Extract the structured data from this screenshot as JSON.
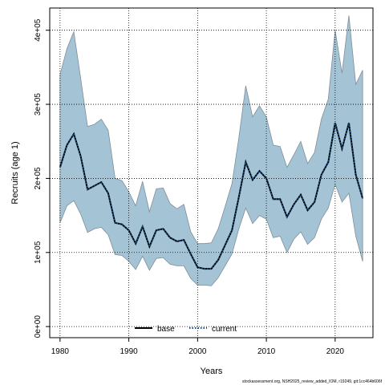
{
  "chart_data": {
    "type": "line",
    "xlabel": "Years",
    "ylabel": "Recruits (age 1)",
    "xlim": [
      1978.5,
      2025.5
    ],
    "ylim": [
      -15000,
      430000
    ],
    "x_ticks": [
      1980,
      1990,
      2000,
      2010,
      2020
    ],
    "x_tick_labels": [
      "1980",
      "1990",
      "2000",
      "2010",
      "2020"
    ],
    "y_ticks": [
      0,
      100000,
      200000,
      300000,
      400000
    ],
    "y_tick_labels": [
      "0e+00",
      "1e+05",
      "2e+05",
      "3e+05",
      "4e+05"
    ],
    "grid": true,
    "legend_position": "bottom-center",
    "x": [
      1980,
      1981,
      1982,
      1983,
      1984,
      1985,
      1986,
      1987,
      1988,
      1989,
      1990,
      1991,
      1992,
      1993,
      1994,
      1995,
      1996,
      1997,
      1998,
      1999,
      2000,
      2001,
      2002,
      2003,
      2004,
      2005,
      2006,
      2007,
      2008,
      2009,
      2010,
      2011,
      2012,
      2013,
      2014,
      2015,
      2016,
      2017,
      2018,
      2019,
      2020,
      2021,
      2022,
      2023,
      2024
    ],
    "series": [
      {
        "name": "base",
        "color": "#000000",
        "style": "solid",
        "values": [
          215000,
          245000,
          260000,
          230000,
          185000,
          190000,
          195000,
          180000,
          140000,
          138000,
          130000,
          112000,
          135000,
          108000,
          130000,
          132000,
          120000,
          115000,
          117000,
          98000,
          80000,
          78000,
          78000,
          90000,
          110000,
          130000,
          175000,
          222000,
          198000,
          210000,
          200000,
          172000,
          172000,
          148000,
          165000,
          178000,
          157000,
          168000,
          205000,
          222000,
          275000,
          240000,
          275000,
          205000,
          173000
        ]
      },
      {
        "name": "current",
        "color": "#1a4f8a",
        "style": "dotted",
        "values": [
          215000,
          245000,
          260000,
          230000,
          185000,
          190000,
          195000,
          180000,
          140000,
          138000,
          130000,
          112000,
          135000,
          108000,
          130000,
          132000,
          120000,
          115000,
          117000,
          98000,
          80000,
          78000,
          78000,
          90000,
          110000,
          130000,
          175000,
          222000,
          198000,
          210000,
          200000,
          172000,
          172000,
          148000,
          165000,
          178000,
          157000,
          168000,
          205000,
          222000,
          275000,
          240000,
          275000,
          205000,
          173000
        ]
      }
    ],
    "band": {
      "fill": "#a4c4d6",
      "edge": "#7e8e9a",
      "lower": [
        140000,
        163000,
        170000,
        152000,
        127000,
        132000,
        134000,
        124000,
        97000,
        96000,
        88000,
        77000,
        95000,
        76000,
        92000,
        93000,
        84000,
        82000,
        82000,
        65000,
        56000,
        56000,
        55000,
        66000,
        82000,
        98000,
        132000,
        160000,
        139000,
        150000,
        145000,
        120000,
        122000,
        100000,
        118000,
        128000,
        111000,
        120000,
        145000,
        160000,
        192000,
        168000,
        180000,
        122000,
        88000
      ],
      "upper": [
        340000,
        375000,
        398000,
        335000,
        270000,
        273000,
        280000,
        265000,
        200000,
        197000,
        182000,
        163000,
        196000,
        155000,
        186000,
        187000,
        166000,
        159000,
        165000,
        128000,
        112000,
        112000,
        113000,
        132000,
        162000,
        193000,
        255000,
        325000,
        283000,
        298000,
        283000,
        245000,
        243000,
        215000,
        232000,
        250000,
        220000,
        235000,
        280000,
        307000,
        400000,
        342000,
        420000,
        327000,
        346000
      ]
    },
    "footnote": "stockassessment.org, NSH2025_review_added_IOM, r19249, git:1cc464b606f"
  }
}
